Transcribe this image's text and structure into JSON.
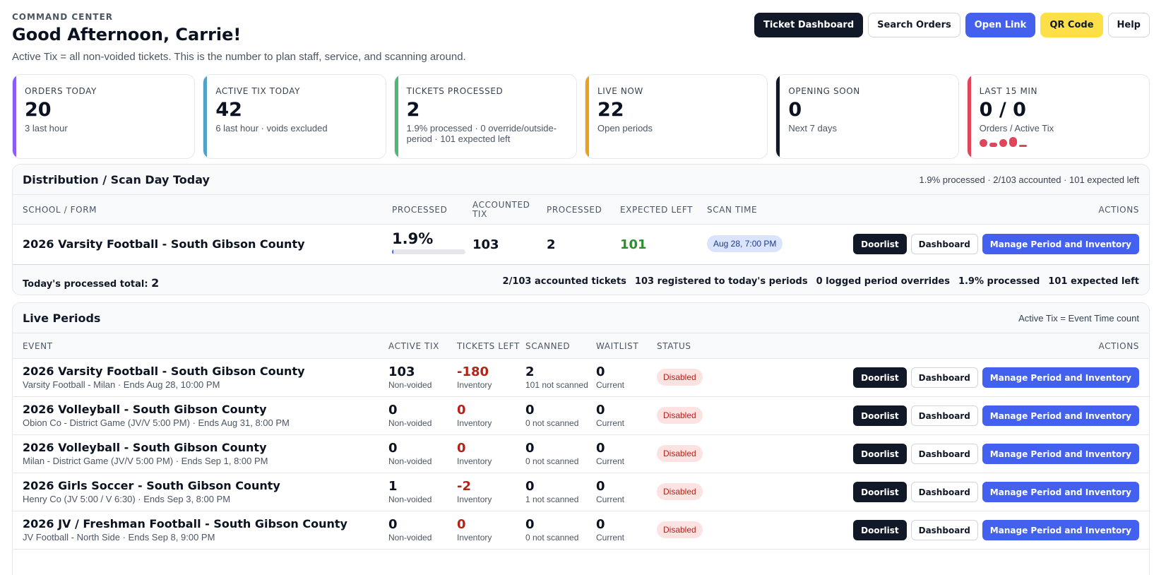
{
  "header": {
    "eyebrow": "COMMAND CENTER",
    "greeting": "Good Afternoon, Carrie!",
    "subline": "Active Tix = all non-voided tickets. This is the number to plan staff, service, and scanning around.",
    "buttons": [
      "Ticket Dashboard",
      "Search Orders",
      "Open Link",
      "QR Code",
      "Help"
    ]
  },
  "stats": [
    {
      "label": "ORDERS TODAY",
      "value": "20",
      "sub": "3 last hour",
      "accent": "#8b5cf6"
    },
    {
      "label": "ACTIVE TIX TODAY",
      "value": "42",
      "sub": "6 last hour · voids excluded",
      "accent": "#4fa3c7"
    },
    {
      "label": "TICKETS PROCESSED",
      "value": "2",
      "sub": "1.9% processed · 0 override/outside-period · 101 expected left",
      "accent": "#4fb874"
    },
    {
      "label": "LIVE NOW",
      "value": "22",
      "sub": "Open periods",
      "accent": "#e8a317"
    },
    {
      "label": "OPENING SOON",
      "value": "0",
      "sub": "Next 7 days",
      "accent": "#111827"
    },
    {
      "label": "LAST 15 MIN",
      "value": "0 / 0",
      "sub": "Orders / Active Tix",
      "accent": "#e0455a"
    }
  ],
  "spark_color": "#e0455a",
  "distribution": {
    "title": "Distribution / Scan Day Today",
    "meta": "1.9% processed · 2/103 accounted · 101 expected left",
    "columns": [
      "SCHOOL / FORM",
      "PROCESSED",
      "ACCOUNTED TIX",
      "PROCESSED",
      "EXPECTED LEFT",
      "SCAN TIME",
      "ACTIONS"
    ],
    "row": {
      "name": "2026 Varsity Football - South Gibson County",
      "processed_pct": "1.9%",
      "processed_fraction": 0.019,
      "accounted": "103",
      "processed": "2",
      "expected_left": "101",
      "scan_time": "Aug 28, 7:00 PM"
    },
    "footer": {
      "total_label": "Today's processed total:",
      "total_value": "2",
      "summary": [
        "2/103 accounted tickets",
        "103 registered to today's periods",
        "0 logged period overrides",
        "1.9% processed",
        "101 expected left"
      ]
    }
  },
  "live": {
    "title": "Live Periods",
    "meta": "Active Tix = Event Time count",
    "columns": [
      "EVENT",
      "ACTIVE TIX",
      "TICKETS LEFT",
      "SCANNED",
      "WAITLIST",
      "STATUS",
      "ACTIONS"
    ],
    "rows": [
      {
        "name": "2026 Varsity Football - South Gibson County",
        "desc": "Varsity Football - Milan · Ends Aug 28, 10:00 PM",
        "active": "103",
        "active_sub": "Non-voided",
        "left": "-180",
        "left_sub": "Inventory",
        "scanned": "2",
        "scanned_sub": "101 not scanned",
        "waitlist": "0",
        "waitlist_sub": "Current",
        "status": "Disabled"
      },
      {
        "name": "2026 Volleyball - South Gibson County",
        "desc": "Obion Co - District Game (JV/V 5:00 PM) · Ends Aug 31, 8:00 PM",
        "active": "0",
        "active_sub": "Non-voided",
        "left": "0",
        "left_sub": "Inventory",
        "scanned": "0",
        "scanned_sub": "0 not scanned",
        "waitlist": "0",
        "waitlist_sub": "Current",
        "status": "Disabled"
      },
      {
        "name": "2026 Volleyball - South Gibson County",
        "desc": "Milan - District Game (JV/V 5:00 PM) · Ends Sep 1, 8:00 PM",
        "active": "0",
        "active_sub": "Non-voided",
        "left": "0",
        "left_sub": "Inventory",
        "scanned": "0",
        "scanned_sub": "0 not scanned",
        "waitlist": "0",
        "waitlist_sub": "Current",
        "status": "Disabled"
      },
      {
        "name": "2026 Girls Soccer - South Gibson County",
        "desc": "Henry Co (JV 5:00 / V 6:30) · Ends Sep 3, 8:00 PM",
        "active": "1",
        "active_sub": "Non-voided",
        "left": "-2",
        "left_sub": "Inventory",
        "scanned": "0",
        "scanned_sub": "1 not scanned",
        "waitlist": "0",
        "waitlist_sub": "Current",
        "status": "Disabled"
      },
      {
        "name": "2026 JV / Freshman Football - South Gibson County",
        "desc": "JV Football - North Side · Ends Sep 8, 9:00 PM",
        "active": "0",
        "active_sub": "Non-voided",
        "left": "0",
        "left_sub": "Inventory",
        "scanned": "0",
        "scanned_sub": "0 not scanned",
        "waitlist": "0",
        "waitlist_sub": "Current",
        "status": "Disabled"
      }
    ]
  },
  "row_actions": [
    "Doorlist",
    "Dashboard",
    "Manage Period and Inventory"
  ]
}
